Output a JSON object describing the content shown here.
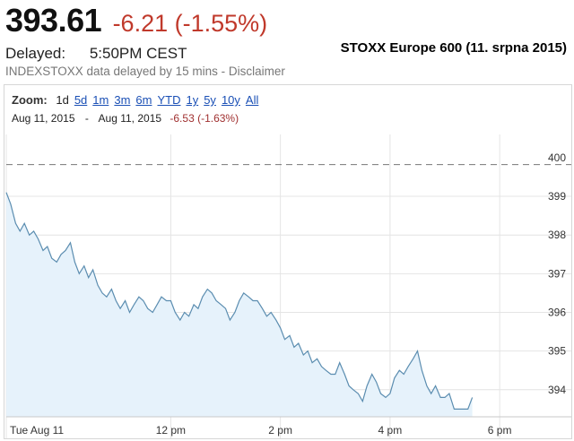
{
  "quote": {
    "price": "393.61",
    "change": "-6.21 (-1.55%)",
    "delayed_label": "Delayed:",
    "delayed_time": "5:50PM CEST",
    "disclaimer_prefix": "INDEXSTOXX data delayed by 15 mins - ",
    "disclaimer_link": "Disclaimer",
    "colors": {
      "negative": "#c0392b"
    }
  },
  "caption": "STOXX Europe 600 (11. srpna 2015)",
  "zoom": {
    "label": "Zoom:",
    "options": [
      "1d",
      "5d",
      "1m",
      "3m",
      "6m",
      "YTD",
      "1y",
      "5y",
      "10y",
      "All"
    ],
    "active": "1d"
  },
  "range": {
    "from": "Aug 11, 2015",
    "separator": "-",
    "to": "Aug 11, 2015",
    "change": "-6.53 (-1.63%)"
  },
  "chart_data": {
    "type": "area",
    "x_unit": "hour of day (CEST)",
    "xlim": [
      9.0,
      18.75
    ],
    "ylim": [
      393.3,
      400.6
    ],
    "previous_close": 399.82,
    "line_color": "#5b8db0",
    "fill_color": "#e6f2fb",
    "grid": true,
    "x_tick_values": [
      9.0,
      12.0,
      14.0,
      16.0,
      18.0
    ],
    "x_tick_labels": [
      "Tue Aug 11",
      "12 pm",
      "2 pm",
      "4 pm",
      "6 pm"
    ],
    "y_ticks": [
      394,
      395,
      396,
      397,
      398,
      399,
      400
    ],
    "series": [
      {
        "x": [
          9.0,
          9.08,
          9.17,
          9.25,
          9.33,
          9.42,
          9.5,
          9.58,
          9.67,
          9.75,
          9.83,
          9.92,
          10.0,
          10.08,
          10.17,
          10.25,
          10.33,
          10.42,
          10.5,
          10.58,
          10.67,
          10.75,
          10.83,
          10.92,
          11.0,
          11.08,
          11.17,
          11.25,
          11.33,
          11.42,
          11.5,
          11.58,
          11.67,
          11.75,
          11.83,
          11.92,
          12.0,
          12.08,
          12.17,
          12.25,
          12.33,
          12.42,
          12.5,
          12.58,
          12.67,
          12.75,
          12.83,
          12.92,
          13.0,
          13.08,
          13.17,
          13.25,
          13.33,
          13.42,
          13.5,
          13.58,
          13.67,
          13.75,
          13.83,
          13.92,
          14.0,
          14.08,
          14.17,
          14.25,
          14.33,
          14.42,
          14.5,
          14.58,
          14.67,
          14.75,
          14.83,
          14.92,
          15.0,
          15.08,
          15.17,
          15.25,
          15.33,
          15.42,
          15.5,
          15.58,
          15.67,
          15.75,
          15.83,
          15.92,
          16.0,
          16.08,
          16.17,
          16.25,
          16.33,
          16.42,
          16.5,
          16.58,
          16.67,
          16.75,
          16.83,
          16.92,
          17.0,
          17.08,
          17.17,
          17.25,
          17.33,
          17.42,
          17.5
        ],
        "y": [
          399.1,
          398.8,
          398.3,
          398.1,
          398.3,
          398.0,
          398.1,
          397.9,
          397.6,
          397.7,
          397.4,
          397.3,
          397.5,
          397.6,
          397.8,
          397.3,
          397.0,
          397.2,
          396.9,
          397.1,
          396.7,
          396.5,
          396.4,
          396.6,
          396.3,
          396.1,
          396.3,
          396.0,
          396.2,
          396.4,
          396.3,
          396.1,
          396.0,
          396.2,
          396.4,
          396.3,
          396.3,
          396.0,
          395.8,
          396.0,
          395.9,
          396.2,
          396.1,
          396.4,
          396.6,
          396.5,
          396.3,
          396.2,
          396.1,
          395.8,
          396.0,
          396.3,
          396.5,
          396.4,
          396.3,
          396.3,
          396.1,
          395.9,
          396.0,
          395.8,
          395.6,
          395.3,
          395.4,
          395.1,
          395.2,
          394.9,
          395.0,
          394.7,
          394.8,
          394.6,
          394.5,
          394.4,
          394.4,
          394.7,
          394.4,
          394.1,
          394.0,
          393.9,
          393.7,
          394.1,
          394.4,
          394.2,
          393.9,
          393.8,
          393.9,
          394.3,
          394.5,
          394.4,
          394.6,
          394.8,
          395.0,
          394.5,
          394.1,
          393.9,
          394.1,
          393.8,
          393.8,
          393.9,
          393.5,
          393.5,
          393.5,
          393.5,
          393.8
        ]
      }
    ]
  }
}
